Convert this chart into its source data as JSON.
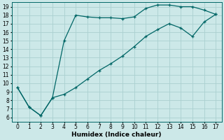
{
  "xlabel": "Humidex (Indice chaleur)",
  "background_color": "#cce8e8",
  "line_color": "#006666",
  "xlim": [
    -0.5,
    17.5
  ],
  "ylim": [
    5.5,
    19.5
  ],
  "xticks": [
    0,
    1,
    2,
    3,
    4,
    5,
    6,
    7,
    8,
    9,
    10,
    11,
    12,
    13,
    14,
    15,
    16,
    17
  ],
  "yticks": [
    6,
    7,
    8,
    9,
    10,
    11,
    12,
    13,
    14,
    15,
    16,
    17,
    18,
    19
  ],
  "line1_x": [
    0,
    1,
    2,
    3,
    4,
    5,
    6,
    7,
    8,
    9,
    10,
    11,
    12,
    13,
    14,
    15,
    16,
    17
  ],
  "line1_y": [
    9.5,
    7.2,
    6.2,
    8.3,
    15.0,
    18.0,
    17.8,
    17.7,
    17.7,
    17.6,
    17.8,
    18.8,
    19.2,
    19.2,
    19.0,
    19.0,
    18.6,
    18.1
  ],
  "line2_x": [
    0,
    1,
    2,
    3,
    4,
    5,
    6,
    7,
    8,
    9,
    10,
    11,
    12,
    13,
    14,
    15,
    16,
    17
  ],
  "line2_y": [
    9.5,
    7.2,
    6.2,
    8.3,
    8.7,
    9.5,
    10.5,
    11.5,
    12.3,
    13.2,
    14.3,
    15.5,
    16.3,
    17.0,
    16.5,
    15.5,
    17.2,
    18.1
  ],
  "grid_color": "#aad0d0",
  "xlabel_fontsize": 6.5,
  "tick_fontsize": 5.5,
  "marker_size": 3,
  "linewidth": 0.9
}
